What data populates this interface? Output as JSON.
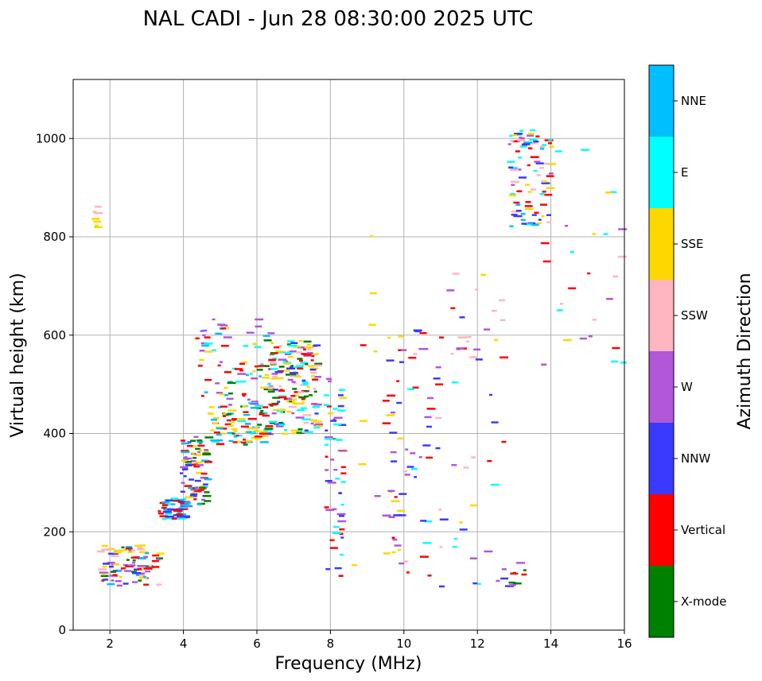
{
  "chart_data": {
    "type": "scatter",
    "title": "NAL CADI - Jun 28 08:30:00 2025 UTC",
    "xlabel": "Frequency (MHz)",
    "ylabel": "Virtual height (km)",
    "xlim": [
      1,
      16
    ],
    "ylim": [
      0,
      1120
    ],
    "xticks": [
      2,
      4,
      6,
      8,
      10,
      12,
      14,
      16
    ],
    "yticks": [
      0,
      200,
      400,
      600,
      800,
      1000
    ],
    "grid": true,
    "colorbar": {
      "title": "Azimuth Direction",
      "categories": [
        {
          "name": "X-mode",
          "color": "#008000"
        },
        {
          "name": "Vertical",
          "color": "#ff0000"
        },
        {
          "name": "NNW",
          "color": "#3a3aff"
        },
        {
          "name": "W",
          "color": "#b157d8"
        },
        {
          "name": "SSW",
          "color": "#ffb6c1"
        },
        {
          "name": "SSE",
          "color": "#ffd700"
        },
        {
          "name": "E",
          "color": "#00ffff"
        },
        {
          "name": "NNE",
          "color": "#00bfff"
        }
      ]
    },
    "clusters": [
      {
        "f": [
          1.6,
          3.3
        ],
        "h": [
          92,
          175
        ],
        "n": 95,
        "colors": [
          "Vertical",
          "NNE",
          "SSW",
          "X-mode",
          "W",
          "SSE",
          "NNW"
        ]
      },
      {
        "f": [
          3.3,
          4.0
        ],
        "h": [
          228,
          270
        ],
        "n": 60,
        "colors": [
          "NNE",
          "Vertical",
          "NNW",
          "E"
        ]
      },
      {
        "f": [
          3.9,
          4.6
        ],
        "h": [
          250,
          400
        ],
        "n": 90,
        "colors": [
          "Vertical",
          "NNE",
          "NNW",
          "X-mode",
          "SSE",
          "W"
        ]
      },
      {
        "f": [
          4.6,
          6.2
        ],
        "h": [
          378,
          460
        ],
        "n": 90,
        "colors": [
          "SSE",
          "E",
          "NNE",
          "X-mode",
          "Vertical"
        ]
      },
      {
        "f": [
          4.2,
          6.3
        ],
        "h": [
          460,
          640
        ],
        "n": 75,
        "colors": [
          "NNE",
          "Vertical",
          "X-mode",
          "E",
          "W",
          "SSE"
        ]
      },
      {
        "f": [
          6.2,
          7.6
        ],
        "h": [
          400,
          590
        ],
        "n": 180,
        "colors": [
          "SSE",
          "W",
          "SSW",
          "Vertical",
          "NNW",
          "X-mode",
          "E"
        ]
      },
      {
        "f": [
          7.8,
          8.3
        ],
        "h": [
          88,
          520
        ],
        "n": 55,
        "colors": [
          "SSE",
          "Vertical",
          "W",
          "NNW",
          "E"
        ]
      },
      {
        "f": [
          9.4,
          9.9
        ],
        "h": [
          90,
          620
        ],
        "n": 35,
        "colors": [
          "NNW",
          "W",
          "SSE",
          "Vertical"
        ]
      },
      {
        "f": [
          10.0,
          11.0
        ],
        "h": [
          88,
          630
        ],
        "n": 40,
        "colors": [
          "E",
          "W",
          "NNW",
          "Vertical",
          "SSW"
        ]
      },
      {
        "f": [
          11.0,
          12.7
        ],
        "h": [
          88,
          730
        ],
        "n": 40,
        "colors": [
          "W",
          "SSE",
          "NNW",
          "SSW",
          "E",
          "Vertical"
        ]
      },
      {
        "f": [
          12.8,
          14.0
        ],
        "h": [
          820,
          1020
        ],
        "n": 90,
        "colors": [
          "W",
          "Vertical",
          "NNW",
          "SSE",
          "E",
          "NNE",
          "SSW"
        ]
      },
      {
        "f": [
          12.5,
          13.3
        ],
        "h": [
          88,
          140
        ],
        "n": 12,
        "colors": [
          "W",
          "Vertical",
          "X-mode",
          "NNW"
        ]
      },
      {
        "f": [
          13.6,
          15.9
        ],
        "h": [
          520,
          980
        ],
        "n": 28,
        "colors": [
          "SSE",
          "Vertical",
          "W",
          "SSW",
          "E"
        ]
      },
      {
        "f": [
          1.5,
          1.6
        ],
        "h": [
          820,
          880
        ],
        "n": 8,
        "colors": [
          "SSW",
          "SSE"
        ]
      },
      {
        "f": [
          7.9,
          9.2
        ],
        "h": [
          88,
          1000
        ],
        "n": 10,
        "colors": [
          "W",
          "SSE",
          "Vertical"
        ]
      }
    ]
  }
}
